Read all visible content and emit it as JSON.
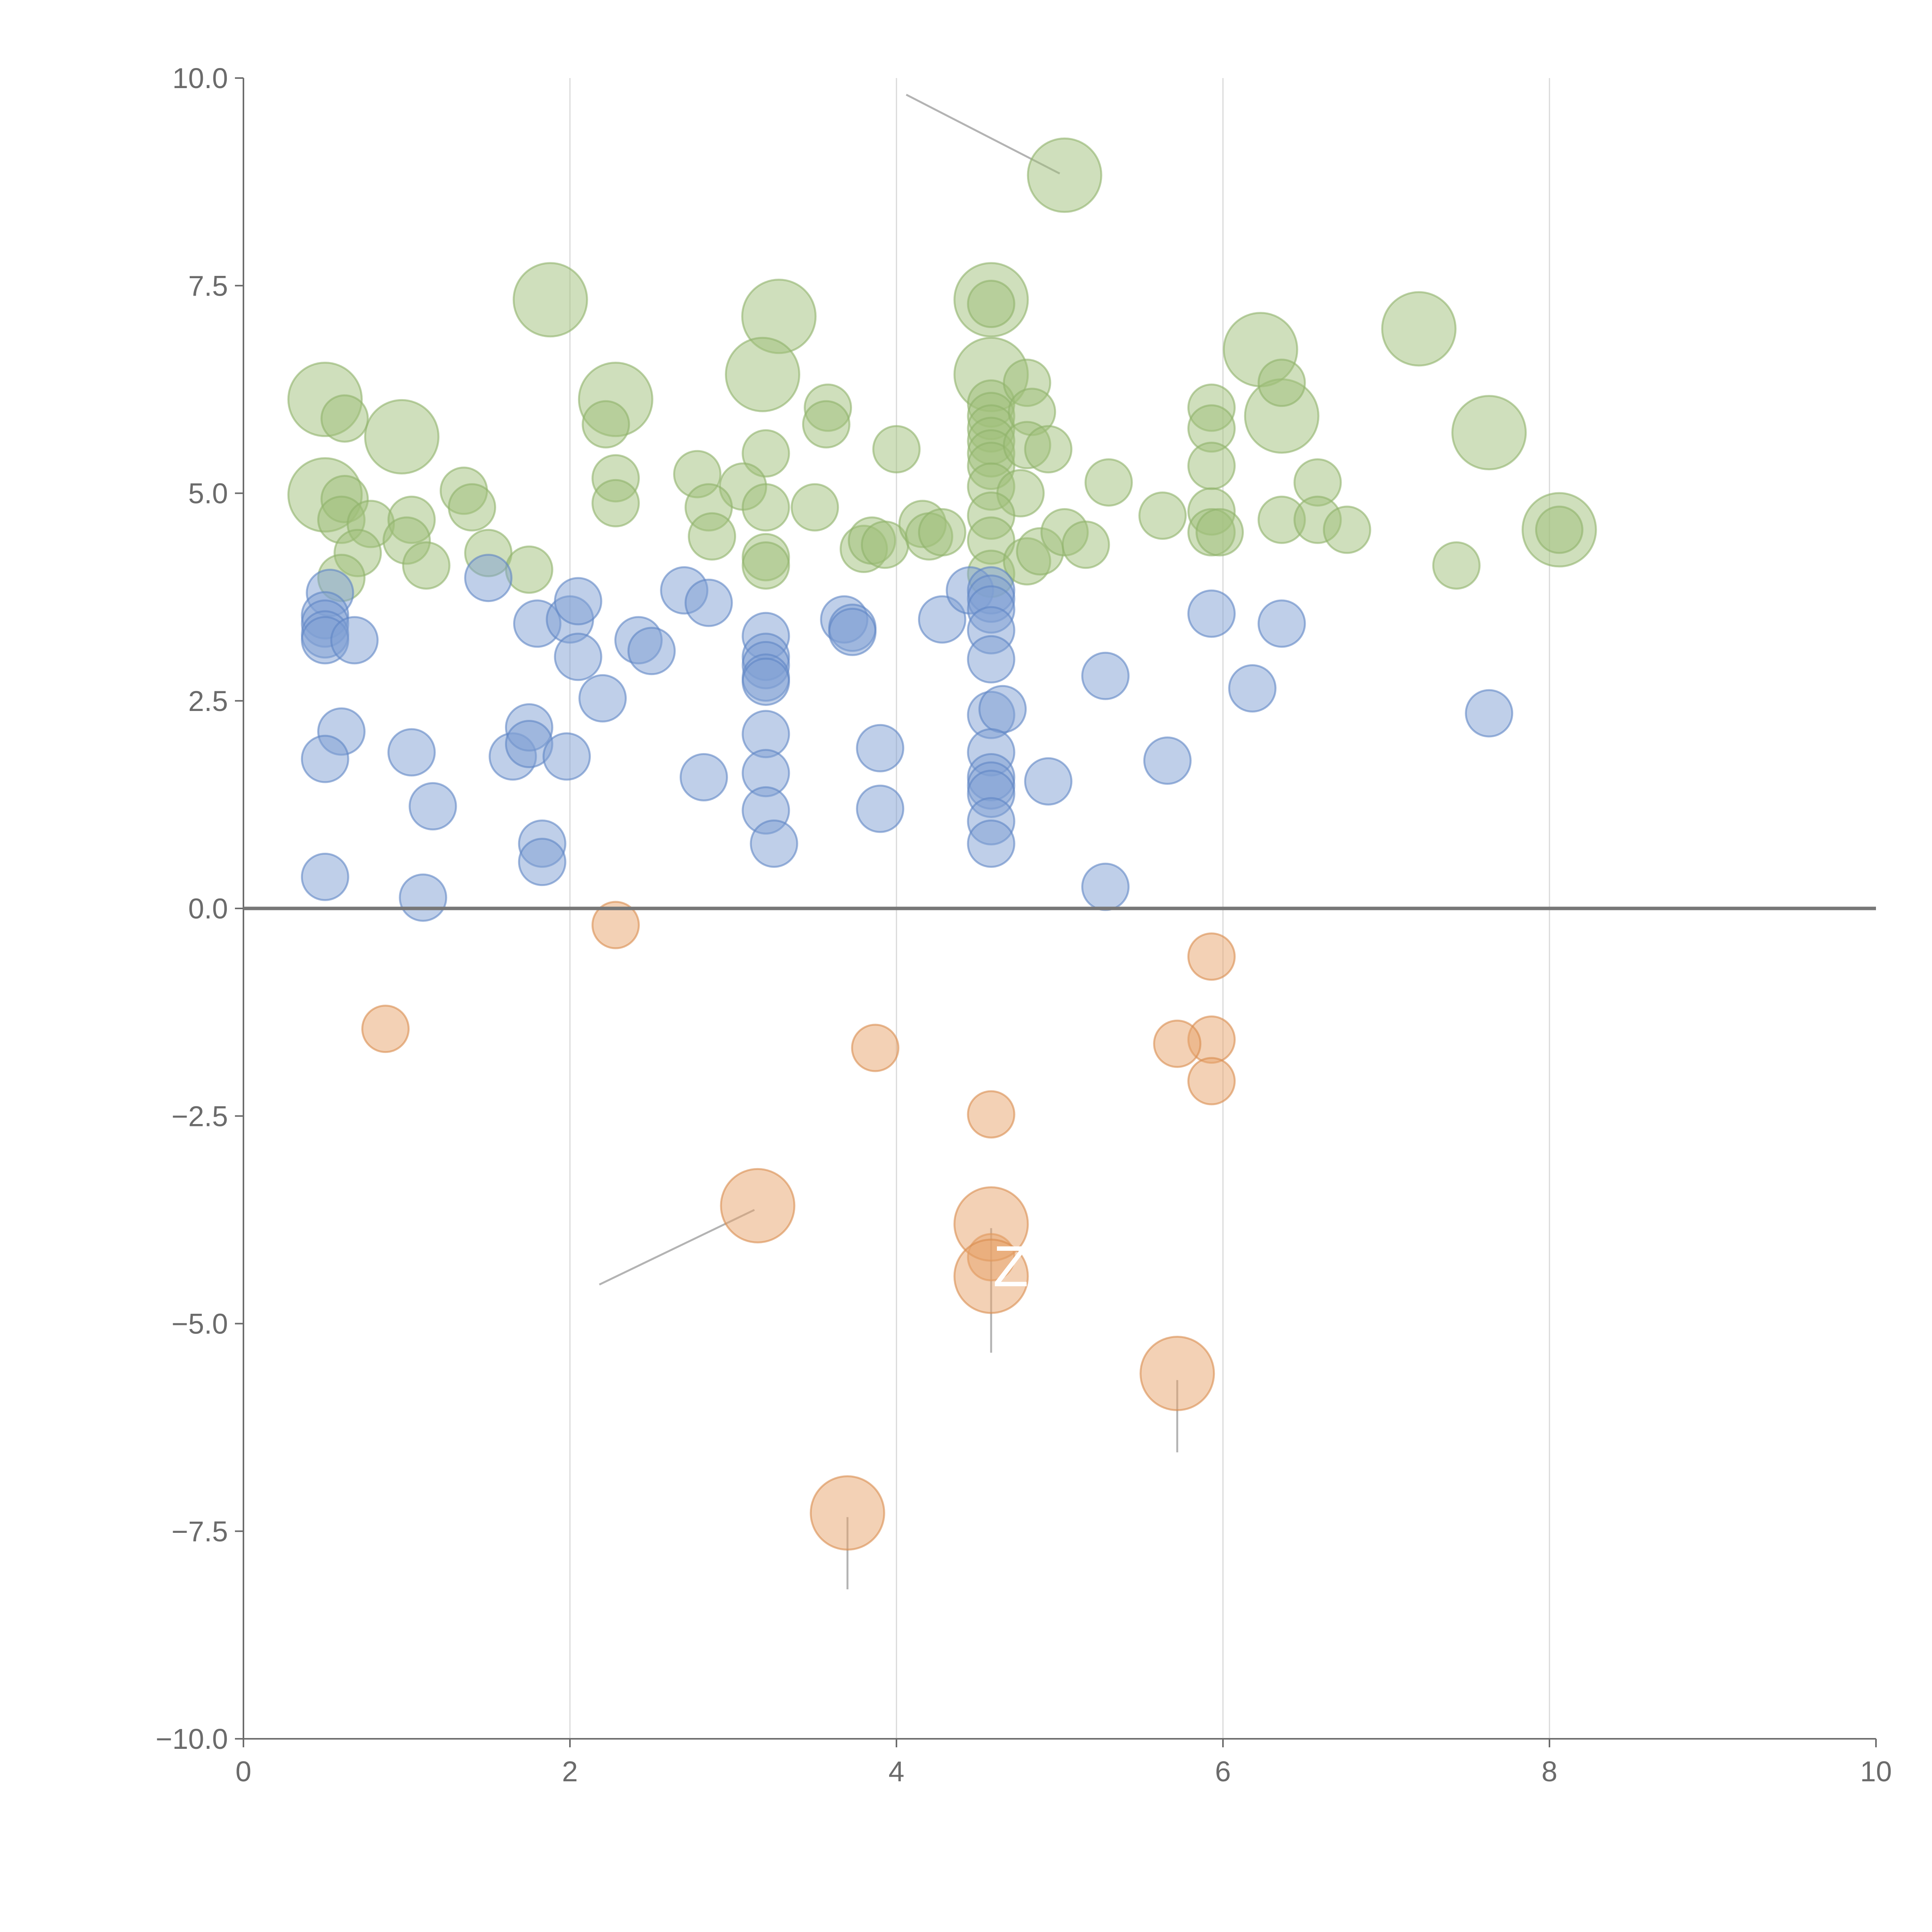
{
  "chart_data": {
    "type": "scatter",
    "title": "",
    "xlabel": "",
    "ylabel": "",
    "xlim": [
      0,
      10
    ],
    "ylim": [
      -10,
      10
    ],
    "x_ticks": [
      "0",
      "2",
      "4",
      "6",
      "8",
      "10"
    ],
    "y_ticks": [
      "10.0",
      "7.5",
      "5.0",
      "2.5",
      "0.0",
      "−2.5",
      "−5.0",
      "−7.5",
      "−10.0"
    ],
    "x_tick_values": [
      0,
      2,
      4,
      6,
      8,
      10
    ],
    "y_tick_values": [
      10,
      7.5,
      5,
      2.5,
      0,
      -2.5,
      -5,
      -7.5,
      -10
    ],
    "vertical_grid": true,
    "horizontal_grid": false,
    "zero_line": true,
    "legend": "none",
    "series": [
      {
        "color": "#9fc07a",
        "stroke": "#8fb36a",
        "points": [
          {
            "x": 5.03,
            "y": 8.83,
            "s": 2
          },
          {
            "x": 1.88,
            "y": 7.33,
            "s": 2
          },
          {
            "x": 3.28,
            "y": 7.13,
            "s": 2
          },
          {
            "x": 4.58,
            "y": 7.33,
            "s": 2
          },
          {
            "x": 7.2,
            "y": 6.98,
            "s": 2
          },
          {
            "x": 6.23,
            "y": 6.73,
            "s": 2
          },
          {
            "x": 4.58,
            "y": 6.43,
            "s": 2
          },
          {
            "x": 3.18,
            "y": 6.43,
            "s": 2
          },
          {
            "x": 0.5,
            "y": 6.13,
            "s": 2
          },
          {
            "x": 2.28,
            "y": 6.13,
            "s": 2
          },
          {
            "x": 6.36,
            "y": 5.93,
            "s": 2
          },
          {
            "x": 0.97,
            "y": 5.68,
            "s": 2
          },
          {
            "x": 7.63,
            "y": 5.73,
            "s": 2
          },
          {
            "x": 0.5,
            "y": 4.98,
            "s": 2
          },
          {
            "x": 8.06,
            "y": 4.56,
            "s": 2
          },
          {
            "x": 4.58,
            "y": 7.28,
            "s": 0
          },
          {
            "x": 0.62,
            "y": 5.9,
            "s": 0
          },
          {
            "x": 2.22,
            "y": 5.83,
            "s": 0
          },
          {
            "x": 3.58,
            "y": 6.03,
            "s": 0
          },
          {
            "x": 3.57,
            "y": 5.83,
            "s": 0
          },
          {
            "x": 4.58,
            "y": 6.08,
            "s": 0
          },
          {
            "x": 4.58,
            "y": 5.93,
            "s": 0
          },
          {
            "x": 4.58,
            "y": 5.78,
            "s": 0
          },
          {
            "x": 4.58,
            "y": 5.63,
            "s": 0
          },
          {
            "x": 4.58,
            "y": 5.48,
            "s": 0
          },
          {
            "x": 4.58,
            "y": 5.33,
            "s": 0
          },
          {
            "x": 4.8,
            "y": 6.33,
            "s": 0
          },
          {
            "x": 4.83,
            "y": 5.98,
            "s": 0
          },
          {
            "x": 4.8,
            "y": 5.58,
            "s": 0
          },
          {
            "x": 4.93,
            "y": 5.53,
            "s": 0
          },
          {
            "x": 4.0,
            "y": 5.53,
            "s": 0
          },
          {
            "x": 3.2,
            "y": 5.48,
            "s": 0
          },
          {
            "x": 5.93,
            "y": 6.03,
            "s": 0
          },
          {
            "x": 5.93,
            "y": 5.78,
            "s": 0
          },
          {
            "x": 6.36,
            "y": 6.33,
            "s": 0
          },
          {
            "x": 5.93,
            "y": 5.33,
            "s": 0
          },
          {
            "x": 1.35,
            "y": 5.03,
            "s": 0
          },
          {
            "x": 2.28,
            "y": 5.18,
            "s": 0
          },
          {
            "x": 2.28,
            "y": 4.88,
            "s": 0
          },
          {
            "x": 2.78,
            "y": 5.23,
            "s": 0
          },
          {
            "x": 3.06,
            "y": 5.08,
            "s": 0
          },
          {
            "x": 2.85,
            "y": 4.83,
            "s": 0
          },
          {
            "x": 3.2,
            "y": 4.83,
            "s": 0
          },
          {
            "x": 3.5,
            "y": 4.83,
            "s": 0
          },
          {
            "x": 4.58,
            "y": 5.08,
            "s": 0
          },
          {
            "x": 4.76,
            "y": 5.0,
            "s": 0
          },
          {
            "x": 5.3,
            "y": 5.13,
            "s": 0
          },
          {
            "x": 6.58,
            "y": 5.13,
            "s": 0
          },
          {
            "x": 0.62,
            "y": 4.93,
            "s": 0
          },
          {
            "x": 0.6,
            "y": 4.68,
            "s": 0
          },
          {
            "x": 0.78,
            "y": 4.63,
            "s": 0
          },
          {
            "x": 1.03,
            "y": 4.68,
            "s": 0
          },
          {
            "x": 1.4,
            "y": 4.83,
            "s": 0
          },
          {
            "x": 1.0,
            "y": 4.43,
            "s": 0
          },
          {
            "x": 0.7,
            "y": 4.28,
            "s": 0
          },
          {
            "x": 1.12,
            "y": 4.13,
            "s": 0
          },
          {
            "x": 1.5,
            "y": 4.28,
            "s": 0
          },
          {
            "x": 1.75,
            "y": 4.08,
            "s": 0
          },
          {
            "x": 0.6,
            "y": 3.98,
            "s": 0
          },
          {
            "x": 2.87,
            "y": 4.48,
            "s": 0
          },
          {
            "x": 3.2,
            "y": 4.23,
            "s": 0
          },
          {
            "x": 3.2,
            "y": 4.13,
            "s": 0
          },
          {
            "x": 3.8,
            "y": 4.33,
            "s": 0
          },
          {
            "x": 3.85,
            "y": 4.43,
            "s": 0
          },
          {
            "x": 3.93,
            "y": 4.38,
            "s": 0
          },
          {
            "x": 4.16,
            "y": 4.63,
            "s": 0
          },
          {
            "x": 4.2,
            "y": 4.48,
            "s": 0
          },
          {
            "x": 4.28,
            "y": 4.53,
            "s": 0
          },
          {
            "x": 4.58,
            "y": 4.73,
            "s": 0
          },
          {
            "x": 4.58,
            "y": 4.43,
            "s": 0
          },
          {
            "x": 4.58,
            "y": 4.03,
            "s": 0
          },
          {
            "x": 4.8,
            "y": 4.18,
            "s": 0
          },
          {
            "x": 4.88,
            "y": 4.3,
            "s": 0
          },
          {
            "x": 5.03,
            "y": 4.53,
            "s": 0
          },
          {
            "x": 5.16,
            "y": 4.38,
            "s": 0
          },
          {
            "x": 5.63,
            "y": 4.73,
            "s": 0
          },
          {
            "x": 5.93,
            "y": 4.78,
            "s": 0
          },
          {
            "x": 5.93,
            "y": 4.53,
            "s": 0
          },
          {
            "x": 5.98,
            "y": 4.53,
            "s": 0
          },
          {
            "x": 6.36,
            "y": 4.68,
            "s": 0
          },
          {
            "x": 6.58,
            "y": 4.68,
            "s": 0
          },
          {
            "x": 6.76,
            "y": 4.56,
            "s": 0
          },
          {
            "x": 7.43,
            "y": 4.13,
            "s": 0
          },
          {
            "x": 8.06,
            "y": 4.56,
            "s": 0
          }
        ]
      },
      {
        "color": "#7fa0d4",
        "stroke": "#5f86c4",
        "points": [
          {
            "x": 0.53,
            "y": 3.8,
            "s": 0
          },
          {
            "x": 0.5,
            "y": 3.53,
            "s": 0
          },
          {
            "x": 0.5,
            "y": 3.43,
            "s": 0
          },
          {
            "x": 0.5,
            "y": 3.3,
            "s": 0
          },
          {
            "x": 0.5,
            "y": 3.23,
            "s": 0
          },
          {
            "x": 0.68,
            "y": 3.23,
            "s": 0
          },
          {
            "x": 1.5,
            "y": 3.98,
            "s": 0
          },
          {
            "x": 1.8,
            "y": 3.43,
            "s": 0
          },
          {
            "x": 2.0,
            "y": 3.48,
            "s": 0
          },
          {
            "x": 2.05,
            "y": 3.7,
            "s": 0
          },
          {
            "x": 2.05,
            "y": 3.03,
            "s": 0
          },
          {
            "x": 2.42,
            "y": 3.23,
            "s": 0
          },
          {
            "x": 2.5,
            "y": 3.1,
            "s": 0
          },
          {
            "x": 2.2,
            "y": 2.53,
            "s": 0
          },
          {
            "x": 2.7,
            "y": 3.83,
            "s": 0
          },
          {
            "x": 2.85,
            "y": 3.68,
            "s": 0
          },
          {
            "x": 3.2,
            "y": 3.28,
            "s": 0
          },
          {
            "x": 3.2,
            "y": 3.03,
            "s": 0
          },
          {
            "x": 3.2,
            "y": 2.93,
            "s": 0
          },
          {
            "x": 3.2,
            "y": 2.78,
            "s": 0
          },
          {
            "x": 3.2,
            "y": 2.73,
            "s": 0
          },
          {
            "x": 3.68,
            "y": 3.48,
            "s": 0
          },
          {
            "x": 3.73,
            "y": 3.38,
            "s": 0
          },
          {
            "x": 3.73,
            "y": 3.33,
            "s": 0
          },
          {
            "x": 4.28,
            "y": 3.48,
            "s": 0
          },
          {
            "x": 4.45,
            "y": 3.83,
            "s": 0
          },
          {
            "x": 4.58,
            "y": 3.83,
            "s": 0
          },
          {
            "x": 4.58,
            "y": 3.73,
            "s": 0
          },
          {
            "x": 4.58,
            "y": 3.6,
            "s": 0
          },
          {
            "x": 4.58,
            "y": 3.35,
            "s": 0
          },
          {
            "x": 4.58,
            "y": 3.0,
            "s": 0
          },
          {
            "x": 5.93,
            "y": 3.55,
            "s": 0
          },
          {
            "x": 6.36,
            "y": 3.43,
            "s": 0
          },
          {
            "x": 0.6,
            "y": 2.13,
            "s": 0
          },
          {
            "x": 0.5,
            "y": 1.8,
            "s": 0
          },
          {
            "x": 1.03,
            "y": 1.88,
            "s": 0
          },
          {
            "x": 1.16,
            "y": 1.23,
            "s": 0
          },
          {
            "x": 1.65,
            "y": 1.83,
            "s": 0
          },
          {
            "x": 1.75,
            "y": 2.18,
            "s": 0
          },
          {
            "x": 1.75,
            "y": 1.98,
            "s": 0
          },
          {
            "x": 1.98,
            "y": 1.83,
            "s": 0
          },
          {
            "x": 2.82,
            "y": 1.58,
            "s": 0
          },
          {
            "x": 3.2,
            "y": 2.1,
            "s": 0
          },
          {
            "x": 3.2,
            "y": 1.63,
            "s": 0
          },
          {
            "x": 3.2,
            "y": 1.18,
            "s": 0
          },
          {
            "x": 3.25,
            "y": 0.78,
            "s": 0
          },
          {
            "x": 3.9,
            "y": 1.93,
            "s": 0
          },
          {
            "x": 3.9,
            "y": 1.2,
            "s": 0
          },
          {
            "x": 4.58,
            "y": 2.33,
            "s": 0
          },
          {
            "x": 4.65,
            "y": 2.4,
            "s": 0
          },
          {
            "x": 4.58,
            "y": 1.88,
            "s": 0
          },
          {
            "x": 4.58,
            "y": 1.58,
            "s": 0
          },
          {
            "x": 4.58,
            "y": 1.48,
            "s": 0
          },
          {
            "x": 4.58,
            "y": 1.38,
            "s": 0
          },
          {
            "x": 4.58,
            "y": 1.05,
            "s": 0
          },
          {
            "x": 4.58,
            "y": 0.78,
            "s": 0
          },
          {
            "x": 4.93,
            "y": 1.53,
            "s": 0
          },
          {
            "x": 5.28,
            "y": 2.8,
            "s": 0
          },
          {
            "x": 5.66,
            "y": 1.78,
            "s": 0
          },
          {
            "x": 6.18,
            "y": 2.65,
            "s": 0
          },
          {
            "x": 7.63,
            "y": 2.35,
            "s": 0
          },
          {
            "x": 0.5,
            "y": 0.38,
            "s": 0
          },
          {
            "x": 1.1,
            "y": 0.13,
            "s": 0
          },
          {
            "x": 1.83,
            "y": 0.78,
            "s": 0
          },
          {
            "x": 1.83,
            "y": 0.56,
            "s": 0
          },
          {
            "x": 5.28,
            "y": 0.26,
            "s": 0
          }
        ]
      },
      {
        "color": "#e8a46c",
        "stroke": "#d98c4e",
        "points": [
          {
            "x": 2.28,
            "y": -0.2,
            "s": 0
          },
          {
            "x": 0.87,
            "y": -1.45,
            "s": 0
          },
          {
            "x": 3.87,
            "y": -1.68,
            "s": 0
          },
          {
            "x": 5.93,
            "y": -0.58,
            "s": 0
          },
          {
            "x": 5.93,
            "y": -1.58,
            "s": 0
          },
          {
            "x": 5.72,
            "y": -1.63,
            "s": 0
          },
          {
            "x": 5.93,
            "y": -2.08,
            "s": 0
          },
          {
            "x": 4.58,
            "y": -2.48,
            "s": 0
          },
          {
            "x": 4.58,
            "y": -4.2,
            "s": 0
          },
          {
            "x": 3.15,
            "y": -3.58,
            "s": 2
          },
          {
            "x": 4.58,
            "y": -3.8,
            "s": 2
          },
          {
            "x": 4.58,
            "y": -4.43,
            "s": 2
          },
          {
            "x": 5.72,
            "y": -5.6,
            "s": 2
          },
          {
            "x": 3.7,
            "y": -7.28,
            "s": 2
          }
        ]
      }
    ],
    "leader_lines": [
      {
        "x1": 5.0,
        "y1": 8.85,
        "x2": 4.06,
        "y2": 9.8
      },
      {
        "x1": 3.13,
        "y1": -3.63,
        "x2": 2.18,
        "y2": -4.53
      },
      {
        "x1": 4.58,
        "y1": -3.85,
        "x2": 4.58,
        "y2": -5.35
      },
      {
        "x1": 5.72,
        "y1": -5.68,
        "x2": 5.72,
        "y2": -6.55
      },
      {
        "x1": 3.7,
        "y1": -7.33,
        "x2": 3.7,
        "y2": -8.2
      }
    ],
    "annotations": [
      {
        "text": "Z",
        "x": 4.7,
        "y": -4.55
      }
    ]
  }
}
